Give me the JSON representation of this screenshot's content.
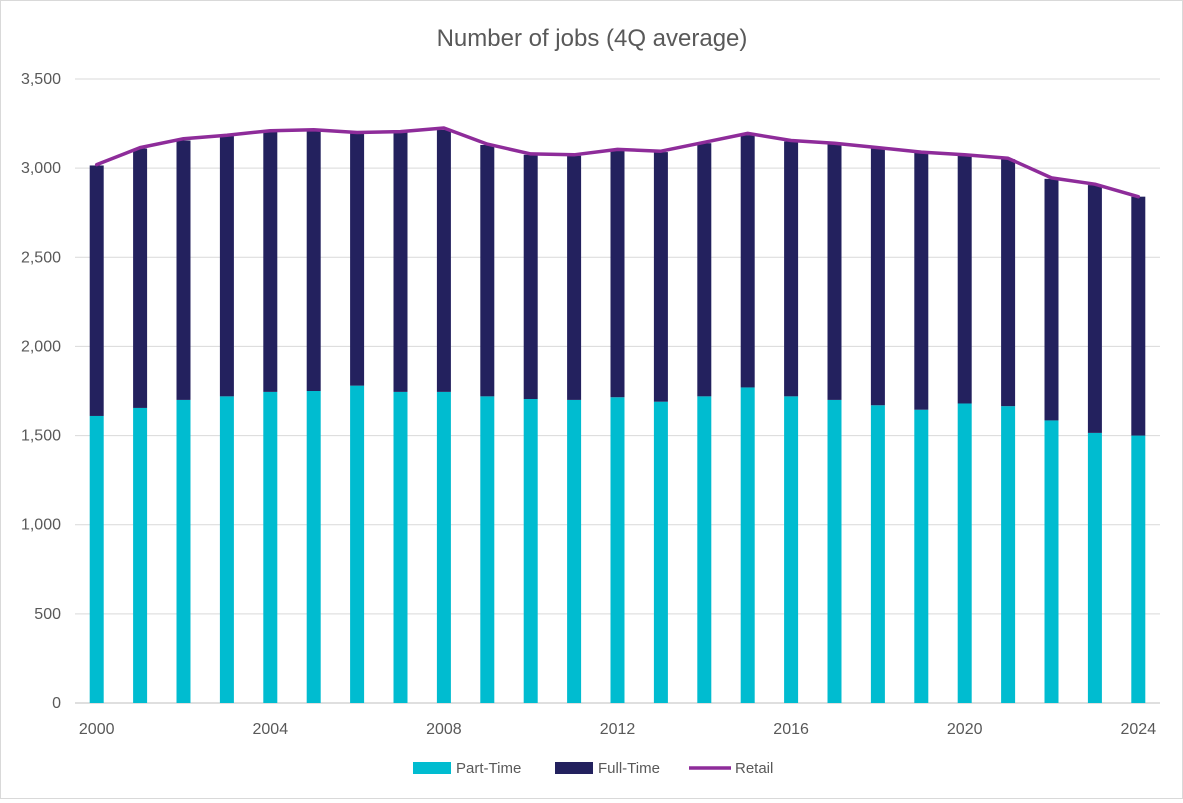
{
  "chart_data": {
    "type": "bar",
    "stacked": true,
    "title": "Number of jobs (4Q average)",
    "xlabel": "",
    "ylabel": "",
    "ylim": [
      0,
      3500
    ],
    "yticks": [
      0,
      500,
      1000,
      1500,
      2000,
      2500,
      3000,
      3500
    ],
    "ytick_labels": [
      "0",
      "500",
      "1,000",
      "1,500",
      "2,000",
      "2,500",
      "3,000",
      "3,500"
    ],
    "x": [
      2000,
      2001,
      2002,
      2003,
      2004,
      2005,
      2006,
      2007,
      2008,
      2009,
      2010,
      2011,
      2012,
      2013,
      2014,
      2015,
      2016,
      2017,
      2018,
      2019,
      2020,
      2021,
      2022,
      2023,
      2024
    ],
    "xticks": [
      "2000",
      "2004",
      "2008",
      "2012",
      "2016",
      "2020",
      "2024"
    ],
    "grid": "horizontal",
    "legend_position": "bottom",
    "series": [
      {
        "name": "Part-Time",
        "kind": "bar",
        "color": "#00BCD0",
        "values": [
          1610,
          1655,
          1700,
          1720,
          1745,
          1750,
          1780,
          1745,
          1745,
          1720,
          1705,
          1700,
          1715,
          1690,
          1720,
          1770,
          1720,
          1700,
          1670,
          1645,
          1680,
          1665,
          1585,
          1515,
          1500
        ]
      },
      {
        "name": "Full-Time",
        "kind": "bar",
        "color": "#23215E",
        "values": [
          1405,
          1455,
          1455,
          1460,
          1460,
          1460,
          1415,
          1455,
          1470,
          1410,
          1370,
          1370,
          1385,
          1400,
          1420,
          1415,
          1430,
          1435,
          1440,
          1440,
          1390,
          1385,
          1355,
          1390,
          1340
        ]
      },
      {
        "name": "Retail",
        "kind": "line",
        "color": "#8E2C9A",
        "values": [
          3020,
          3115,
          3165,
          3185,
          3210,
          3215,
          3200,
          3205,
          3225,
          3135,
          3080,
          3075,
          3105,
          3095,
          3145,
          3195,
          3155,
          3140,
          3115,
          3090,
          3075,
          3055,
          2945,
          2910,
          2840
        ]
      }
    ]
  }
}
